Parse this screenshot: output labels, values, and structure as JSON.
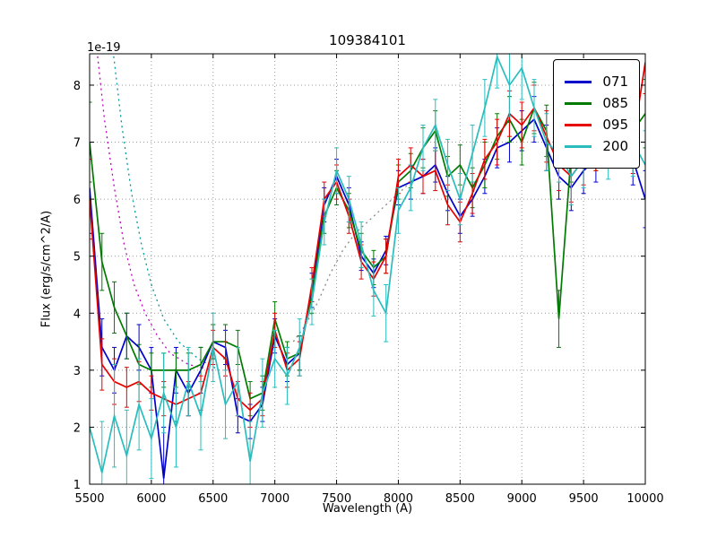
{
  "chart_data": {
    "type": "line",
    "title": "109384101",
    "xlabel": "Wavelength (A)",
    "ylabel": "Flux (erg/s/cm^2/A)",
    "offset_text": "1e-19",
    "xlim": [
      5500,
      10000
    ],
    "ylim": [
      1,
      8.55
    ],
    "xticks": [
      5500,
      6000,
      6500,
      7000,
      7500,
      8000,
      8500,
      9000,
      9500,
      10000
    ],
    "yticks": [
      1,
      2,
      3,
      4,
      5,
      6,
      7,
      8
    ],
    "grid": true,
    "legend_position": "upper right",
    "x": [
      5500,
      5600,
      5700,
      5800,
      5900,
      6000,
      6100,
      6200,
      6300,
      6400,
      6500,
      6600,
      6700,
      6800,
      6900,
      7000,
      7100,
      7200,
      7300,
      7400,
      7500,
      7600,
      7700,
      7800,
      7900,
      8000,
      8100,
      8200,
      8300,
      8400,
      8500,
      8600,
      8700,
      8800,
      8900,
      9000,
      9100,
      9200,
      9300,
      9400,
      9500,
      9600,
      9700,
      9800,
      9900,
      10000
    ],
    "series": [
      {
        "name": "071",
        "color": "#0000cc",
        "values": [
          6.2,
          3.4,
          3.0,
          3.6,
          3.4,
          3.0,
          1.1,
          3.0,
          2.6,
          3.0,
          3.5,
          3.4,
          2.2,
          2.1,
          2.4,
          3.6,
          3.1,
          3.3,
          4.4,
          5.9,
          6.4,
          5.9,
          5.0,
          4.7,
          5.1,
          6.2,
          6.3,
          6.4,
          6.6,
          6.1,
          5.7,
          6.0,
          6.4,
          6.9,
          7.0,
          7.2,
          7.4,
          6.9,
          6.4,
          6.2,
          6.5,
          6.7,
          7.0,
          7.3,
          6.7,
          6.0
        ],
        "err": [
          0.8,
          0.5,
          0.4,
          0.4,
          0.4,
          0.4,
          0.9,
          0.4,
          0.4,
          0.4,
          0.3,
          0.3,
          0.3,
          0.3,
          0.3,
          0.3,
          0.3,
          0.3,
          0.3,
          0.3,
          0.3,
          0.3,
          0.25,
          0.25,
          0.25,
          0.3,
          0.3,
          0.3,
          0.3,
          0.3,
          0.3,
          0.3,
          0.3,
          0.35,
          0.35,
          0.35,
          0.4,
          0.4,
          0.4,
          0.4,
          0.4,
          0.4,
          0.45,
          0.45,
          0.45,
          0.5
        ]
      },
      {
        "name": "085",
        "color": "#007a00",
        "values": [
          7.0,
          4.9,
          4.1,
          3.6,
          3.1,
          3.0,
          3.0,
          3.0,
          3.0,
          3.1,
          3.5,
          3.5,
          3.4,
          2.5,
          2.6,
          3.9,
          3.2,
          3.3,
          4.3,
          5.7,
          6.2,
          5.8,
          5.1,
          4.8,
          5.0,
          6.3,
          6.5,
          6.9,
          7.2,
          6.4,
          6.6,
          6.2,
          6.6,
          7.1,
          7.4,
          7.0,
          7.6,
          7.2,
          3.9,
          6.8,
          7.2,
          7.0,
          7.4,
          7.7,
          7.2,
          7.5
        ],
        "err": [
          0.7,
          0.5,
          0.45,
          0.4,
          0.35,
          0.3,
          0.3,
          0.3,
          0.3,
          0.3,
          0.3,
          0.3,
          0.3,
          0.3,
          0.3,
          0.3,
          0.3,
          0.3,
          0.3,
          0.3,
          0.3,
          0.3,
          0.3,
          0.3,
          0.3,
          0.3,
          0.3,
          0.35,
          0.35,
          0.35,
          0.35,
          0.35,
          0.4,
          0.4,
          0.4,
          0.4,
          0.45,
          0.45,
          0.5,
          0.5,
          0.5,
          0.5,
          0.55,
          0.55,
          0.6,
          0.6
        ]
      },
      {
        "name": "095",
        "color": "#e60000",
        "values": [
          6.0,
          3.1,
          2.8,
          2.7,
          2.8,
          2.6,
          2.5,
          2.4,
          2.5,
          2.6,
          3.4,
          3.2,
          2.5,
          2.3,
          2.5,
          3.7,
          3.0,
          3.2,
          4.5,
          6.0,
          6.3,
          5.7,
          4.9,
          4.6,
          5.0,
          6.4,
          6.6,
          6.4,
          6.5,
          5.9,
          5.6,
          6.1,
          6.7,
          7.0,
          7.5,
          7.3,
          7.6,
          7.1,
          6.6,
          6.4,
          6.7,
          7.0,
          7.3,
          7.5,
          7.0,
          8.4
        ],
        "err": [
          0.7,
          0.45,
          0.4,
          0.35,
          0.35,
          0.3,
          0.3,
          0.3,
          0.3,
          0.3,
          0.3,
          0.3,
          0.3,
          0.3,
          0.3,
          0.3,
          0.3,
          0.3,
          0.3,
          0.3,
          0.3,
          0.3,
          0.3,
          0.3,
          0.3,
          0.3,
          0.3,
          0.3,
          0.35,
          0.35,
          0.35,
          0.35,
          0.35,
          0.4,
          0.4,
          0.4,
          0.4,
          0.45,
          0.45,
          0.45,
          0.45,
          0.5,
          0.5,
          0.5,
          0.55,
          0.55
        ]
      },
      {
        "name": "200",
        "color": "#2bbdbd",
        "values": [
          2.0,
          1.2,
          2.2,
          1.5,
          2.4,
          1.8,
          2.6,
          2.0,
          2.8,
          2.2,
          3.4,
          2.4,
          2.8,
          1.4,
          2.6,
          3.2,
          2.9,
          3.4,
          4.2,
          5.6,
          6.5,
          6.0,
          5.2,
          4.4,
          4.0,
          5.8,
          6.2,
          6.9,
          7.3,
          6.6,
          6.0,
          6.8,
          7.6,
          8.5,
          8.0,
          8.3,
          7.6,
          7.0,
          6.8,
          6.4,
          6.7,
          7.2,
          6.9,
          7.4,
          7.0,
          6.6
        ],
        "err": [
          1.0,
          0.9,
          0.9,
          0.8,
          0.8,
          0.7,
          0.7,
          0.7,
          0.6,
          0.6,
          0.6,
          0.6,
          0.6,
          0.7,
          0.6,
          0.5,
          0.5,
          0.5,
          0.4,
          0.4,
          0.4,
          0.4,
          0.4,
          0.45,
          0.5,
          0.4,
          0.4,
          0.4,
          0.45,
          0.45,
          0.45,
          0.5,
          0.5,
          0.55,
          0.55,
          0.55,
          0.5,
          0.5,
          0.5,
          0.5,
          0.5,
          0.55,
          0.55,
          0.6,
          0.6,
          0.6
        ]
      }
    ],
    "models": [
      {
        "name": "model-dotted-magenta",
        "color": "#bf00bf",
        "points": [
          [
            5560,
            8.6
          ],
          [
            5620,
            7.4
          ],
          [
            5700,
            6.2
          ],
          [
            5780,
            5.2
          ],
          [
            5860,
            4.5
          ],
          [
            5950,
            4.0
          ],
          [
            6050,
            3.6
          ],
          [
            6150,
            3.3
          ],
          [
            6300,
            3.1
          ],
          [
            6500,
            3.0
          ]
        ]
      },
      {
        "name": "model-dotted-teal",
        "color": "#009999",
        "points": [
          [
            5690,
            8.6
          ],
          [
            5760,
            7.3
          ],
          [
            5840,
            6.1
          ],
          [
            5920,
            5.2
          ],
          [
            6000,
            4.5
          ],
          [
            6100,
            3.9
          ],
          [
            6220,
            3.5
          ],
          [
            6380,
            3.2
          ],
          [
            6550,
            3.0
          ]
        ]
      },
      {
        "name": "model-dotted-gray",
        "color": "#888888",
        "points": [
          [
            7150,
            3.5
          ],
          [
            7250,
            3.8
          ],
          [
            7350,
            4.2
          ],
          [
            7450,
            4.7
          ],
          [
            7550,
            5.1
          ],
          [
            7650,
            5.4
          ],
          [
            7750,
            5.6
          ],
          [
            7850,
            5.8
          ],
          [
            7950,
            6.0
          ],
          [
            8050,
            6.2
          ],
          [
            8150,
            6.4
          ]
        ]
      }
    ],
    "colors": {
      "background": "#ffffff",
      "axes": "#000000",
      "grid": "#9a9a9a"
    }
  }
}
